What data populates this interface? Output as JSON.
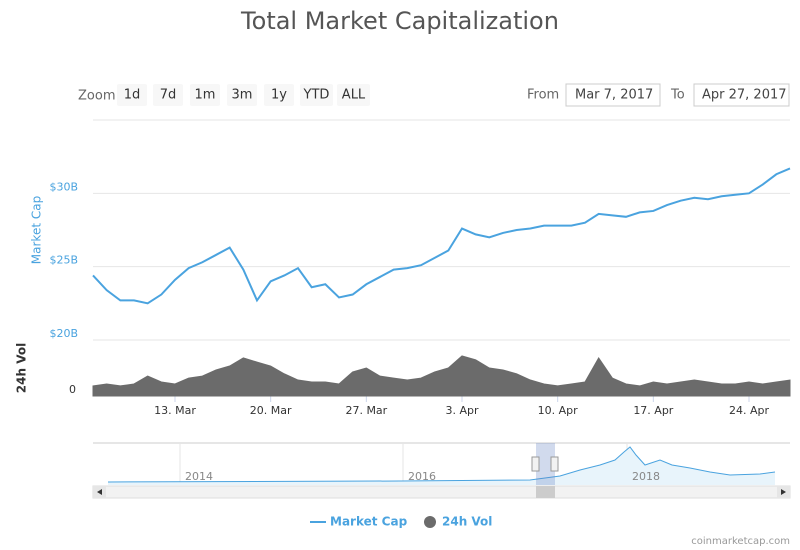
{
  "chart_data": {
    "type": "line",
    "title": "Total Market Capitalization",
    "zoom_label": "Zoom",
    "zoom_buttons": [
      "1d",
      "7d",
      "1m",
      "3m",
      "1y",
      "YTD",
      "ALL"
    ],
    "from_label": "From",
    "from": "Mar 7, 2017",
    "to_label": "To",
    "to": "Apr 27, 2017",
    "y_axis_label": "Market Cap",
    "y2_axis_label": "24h Vol",
    "categories": [
      "Mar 7",
      "Mar 8",
      "Mar 9",
      "Mar 10",
      "Mar 11",
      "Mar 12",
      "Mar 13",
      "Mar 14",
      "Mar 15",
      "Mar 16",
      "Mar 17",
      "Mar 18",
      "Mar 19",
      "Mar 20",
      "Mar 21",
      "Mar 22",
      "Mar 23",
      "Mar 24",
      "Mar 25",
      "Mar 26",
      "Mar 27",
      "Mar 28",
      "Mar 29",
      "Mar 30",
      "Mar 31",
      "Apr 1",
      "Apr 2",
      "Apr 3",
      "Apr 4",
      "Apr 5",
      "Apr 6",
      "Apr 7",
      "Apr 8",
      "Apr 9",
      "Apr 10",
      "Apr 11",
      "Apr 12",
      "Apr 13",
      "Apr 14",
      "Apr 15",
      "Apr 16",
      "Apr 17",
      "Apr 18",
      "Apr 19",
      "Apr 20",
      "Apr 21",
      "Apr 22",
      "Apr 23",
      "Apr 24",
      "Apr 25",
      "Apr 26",
      "Apr 27"
    ],
    "xticks": [
      {
        "value": "Mar 13",
        "label": "13. Mar"
      },
      {
        "value": "Mar 20",
        "label": "20. Mar"
      },
      {
        "value": "Mar 27",
        "label": "27. Mar"
      },
      {
        "value": "Apr 3",
        "label": "3. Apr"
      },
      {
        "value": "Apr 10",
        "label": "10. Apr"
      },
      {
        "value": "Apr 17",
        "label": "17. Apr"
      },
      {
        "value": "Apr 24",
        "label": "24. Apr"
      }
    ],
    "ylim": [
      20,
      35
    ],
    "yticks": [
      {
        "value": 20,
        "label": "$20B"
      },
      {
        "value": 25,
        "label": "$25B"
      },
      {
        "value": 30,
        "label": "$30B"
      }
    ],
    "y2lim": [
      0,
      2
    ],
    "y2ticks": [
      0
    ],
    "grid": true,
    "series": [
      {
        "name": "Market Cap",
        "color": "#4aa3df",
        "values": [
          24.4,
          23.4,
          22.7,
          22.7,
          22.5,
          23.1,
          24.1,
          24.9,
          25.3,
          25.8,
          26.3,
          24.8,
          22.7,
          24.0,
          24.4,
          24.9,
          23.6,
          23.8,
          22.9,
          23.1,
          23.8,
          24.3,
          24.8,
          24.9,
          25.1,
          25.6,
          26.1,
          27.6,
          27.2,
          27.0,
          27.3,
          27.5,
          27.6,
          27.8,
          27.8,
          27.8,
          28.0,
          28.6,
          28.5,
          28.4,
          28.7,
          28.8,
          29.2,
          29.5,
          29.7,
          29.6,
          29.8,
          29.9,
          30.0,
          30.6,
          31.3,
          31.7
        ]
      },
      {
        "name": "24h Vol",
        "color": "#6b6b6b",
        "axis": "y2",
        "values": [
          0.36,
          0.43,
          0.36,
          0.43,
          0.71,
          0.5,
          0.43,
          0.64,
          0.71,
          0.93,
          1.07,
          1.36,
          1.21,
          1.07,
          0.79,
          0.57,
          0.5,
          0.5,
          0.43,
          0.86,
          1.0,
          0.71,
          0.64,
          0.57,
          0.64,
          0.86,
          1.0,
          1.43,
          1.29,
          1.0,
          0.93,
          0.79,
          0.57,
          0.43,
          0.36,
          0.43,
          0.5,
          1.36,
          0.64,
          0.43,
          0.36,
          0.5,
          0.43,
          0.5,
          0.57,
          0.5,
          0.43,
          0.43,
          0.5,
          0.43,
          0.5,
          0.57
        ]
      }
    ],
    "navigator_ticks": [
      "2014",
      "2016",
      "2018"
    ],
    "credit": "coinmarketcap.com"
  }
}
